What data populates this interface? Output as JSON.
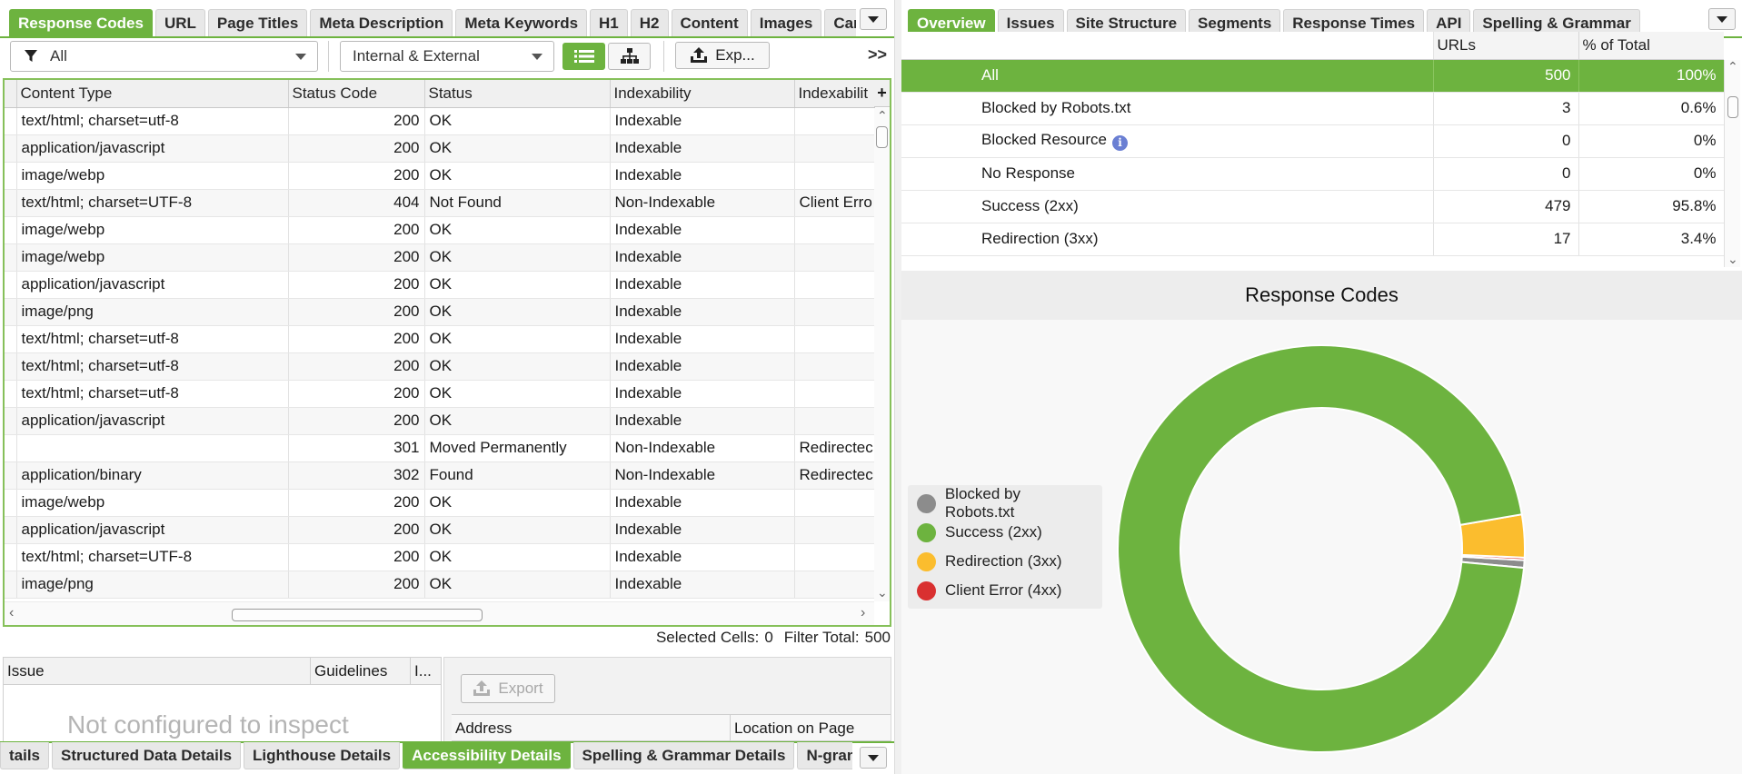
{
  "left_tabs": {
    "items": [
      "Response Codes",
      "URL",
      "Page Titles",
      "Meta Description",
      "Meta Keywords",
      "H1",
      "H2",
      "Content",
      "Images",
      "Canonic"
    ],
    "active": 0
  },
  "toolbar": {
    "filter_value": "All",
    "scope_value": "Internal & External",
    "export_label": "Exp...",
    "more_label": ">>"
  },
  "grid": {
    "columns": [
      "Content Type",
      "Status Code",
      "Status",
      "Indexability",
      "Indexabilit"
    ],
    "add_column_label": "+",
    "rows": [
      [
        "text/html; charset=utf-8",
        "200",
        "OK",
        "Indexable",
        ""
      ],
      [
        "application/javascript",
        "200",
        "OK",
        "Indexable",
        ""
      ],
      [
        "image/webp",
        "200",
        "OK",
        "Indexable",
        ""
      ],
      [
        "text/html; charset=UTF-8",
        "404",
        "Not Found",
        "Non-Indexable",
        "Client Erro"
      ],
      [
        "image/webp",
        "200",
        "OK",
        "Indexable",
        ""
      ],
      [
        "image/webp",
        "200",
        "OK",
        "Indexable",
        ""
      ],
      [
        "application/javascript",
        "200",
        "OK",
        "Indexable",
        ""
      ],
      [
        "image/png",
        "200",
        "OK",
        "Indexable",
        ""
      ],
      [
        "text/html; charset=utf-8",
        "200",
        "OK",
        "Indexable",
        ""
      ],
      [
        "text/html; charset=utf-8",
        "200",
        "OK",
        "Indexable",
        ""
      ],
      [
        "text/html; charset=utf-8",
        "200",
        "OK",
        "Indexable",
        ""
      ],
      [
        "application/javascript",
        "200",
        "OK",
        "Indexable",
        ""
      ],
      [
        "",
        "301",
        "Moved Permanently",
        "Non-Indexable",
        "Redirectec"
      ],
      [
        "application/binary",
        "302",
        "Found",
        "Non-Indexable",
        "Redirectec"
      ],
      [
        "image/webp",
        "200",
        "OK",
        "Indexable",
        ""
      ],
      [
        "application/javascript",
        "200",
        "OK",
        "Indexable",
        ""
      ],
      [
        "text/html; charset=UTF-8",
        "200",
        "OK",
        "Indexable",
        ""
      ],
      [
        "image/png",
        "200",
        "OK",
        "Indexable",
        ""
      ]
    ]
  },
  "status_bar": {
    "selected_cells_label": "Selected Cells:",
    "selected_cells": "0",
    "filter_total_label": "Filter Total:",
    "filter_total": "500"
  },
  "issues_panel": {
    "columns": [
      "Issue",
      "Guidelines",
      "I..."
    ],
    "placeholder": "Not configured to inspect",
    "export_label": "Export",
    "location_columns": [
      "Address",
      "Location on Page"
    ]
  },
  "bottom_tabs": {
    "items": [
      "tails",
      "Structured Data Details",
      "Lighthouse Details",
      "Accessibility Details",
      "Spelling & Grammar Details",
      "N-grams"
    ],
    "active": 3
  },
  "right_tabs": {
    "items": [
      "Overview",
      "Issues",
      "Site Structure",
      "Segments",
      "Response Times",
      "API",
      "Spelling & Grammar"
    ],
    "active": 0
  },
  "overview": {
    "columns": [
      "",
      "URLs",
      "% of Total"
    ],
    "rows": [
      {
        "label": "All",
        "urls": "500",
        "pct": "100%",
        "selected": true,
        "info": false
      },
      {
        "label": "Blocked by Robots.txt",
        "urls": "3",
        "pct": "0.6%",
        "selected": false,
        "info": false
      },
      {
        "label": "Blocked Resource",
        "urls": "0",
        "pct": "0%",
        "selected": false,
        "info": true
      },
      {
        "label": "No Response",
        "urls": "0",
        "pct": "0%",
        "selected": false,
        "info": false
      },
      {
        "label": "Success (2xx)",
        "urls": "479",
        "pct": "95.8%",
        "selected": false,
        "info": false
      },
      {
        "label": "Redirection (3xx)",
        "urls": "17",
        "pct": "3.4%",
        "selected": false,
        "info": false
      }
    ]
  },
  "chart_data": {
    "type": "pie",
    "title": "Response Codes",
    "legend_position": "left",
    "labels": [
      "Blocked by Robots.txt",
      "Success (2xx)",
      "Redirection (3xx)",
      "Client Error (4xx)"
    ],
    "values": [
      3,
      479,
      17,
      1
    ],
    "colors": [
      "#8c8c8c",
      "#6db33f",
      "#fbbd2e",
      "#d93030"
    ],
    "donut": true
  },
  "icons": {
    "filter": "filter-icon",
    "list_view": "list-view-icon",
    "tree_view": "tree-view-icon",
    "export": "export-icon",
    "info": "info-icon"
  }
}
